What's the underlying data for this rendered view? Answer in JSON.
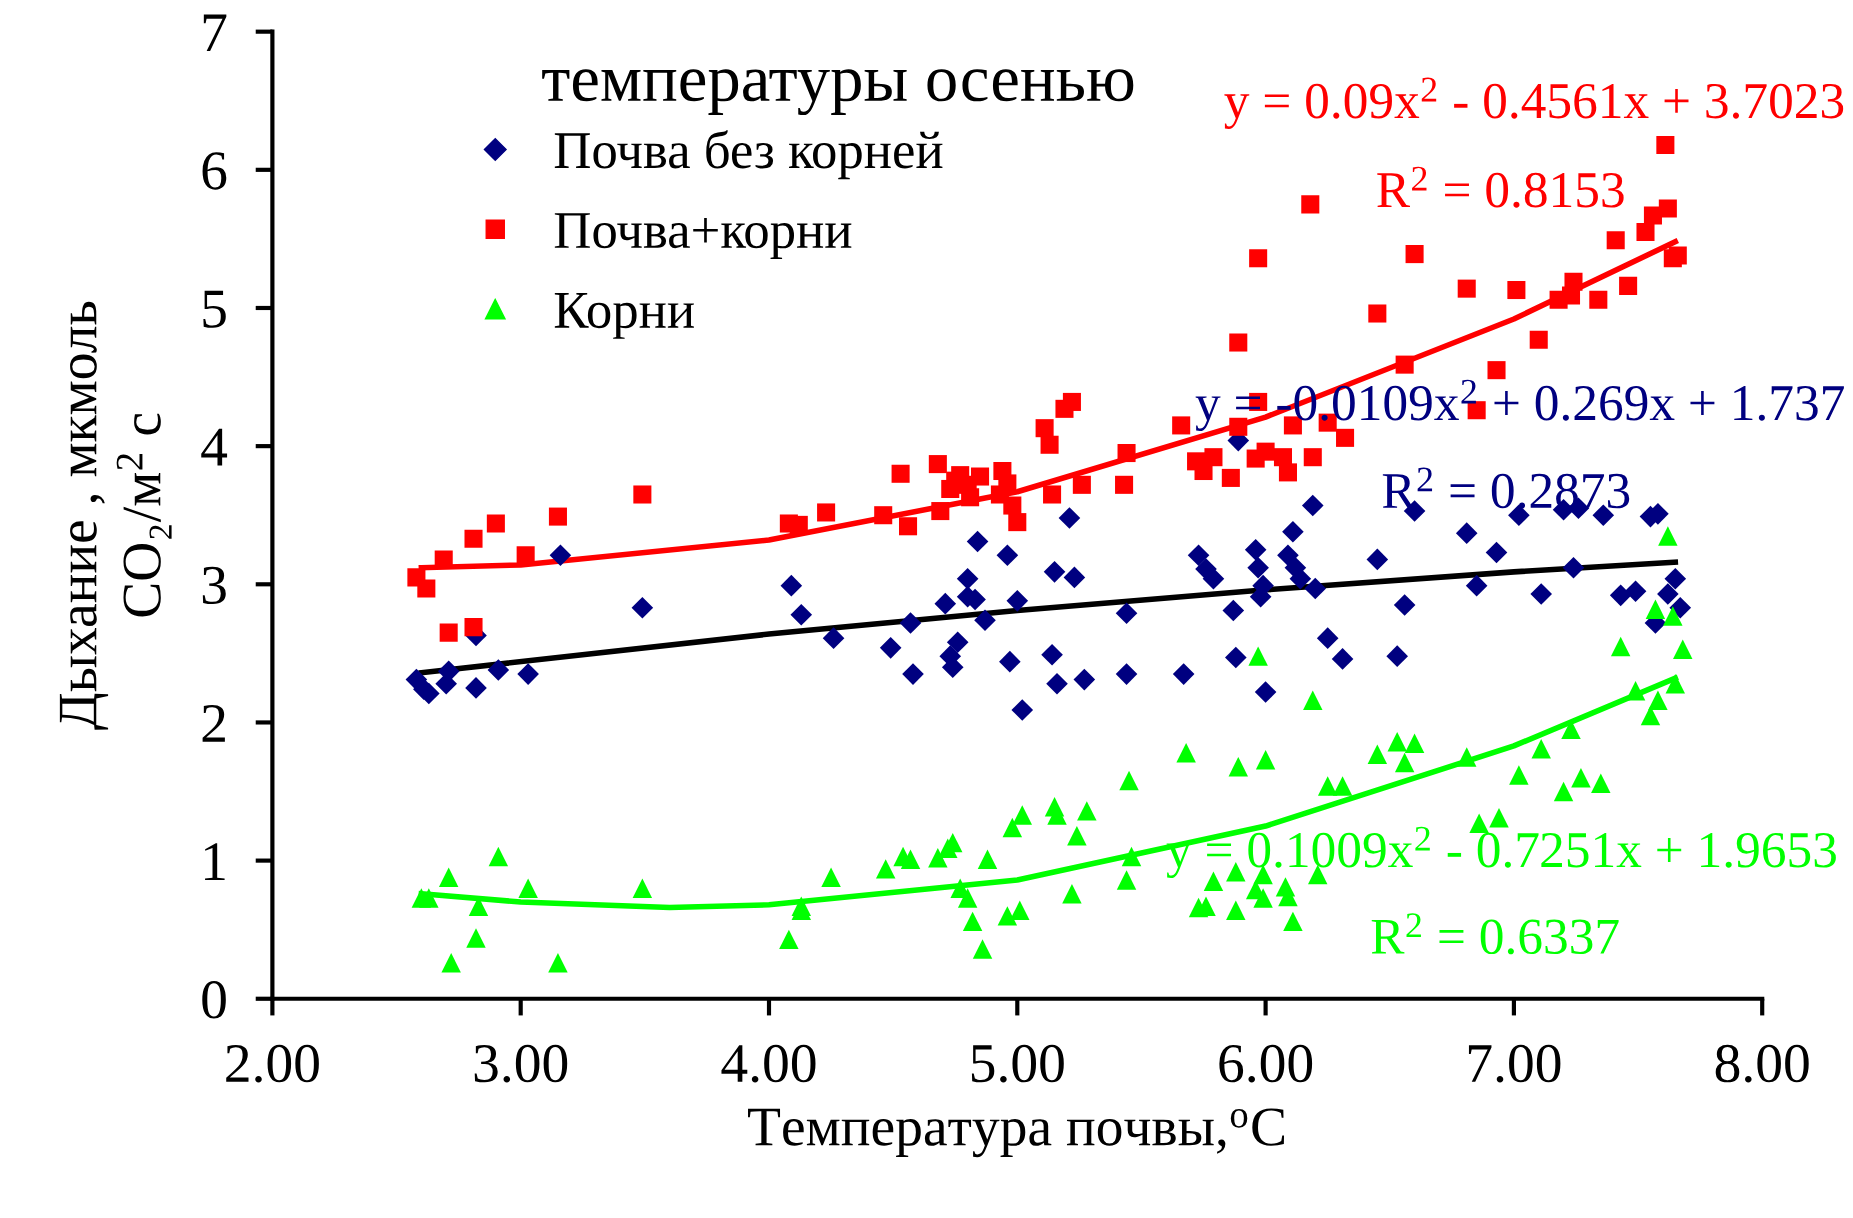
{
  "chart_data": {
    "type": "scatter",
    "title": "температуры осенью",
    "xlabel": "Температура почвы,$^{o}$C",
    "ylabel": "Дыхание , мкмоль\nCO₂/м$^{2}$ с",
    "xlim": [
      2,
      8
    ],
    "xticks": [
      {
        "value": 2,
        "label": "2.00"
      },
      {
        "value": 3,
        "label": "3.00"
      },
      {
        "value": 4,
        "label": "4.00"
      },
      {
        "value": 5,
        "label": "5.00"
      },
      {
        "value": 6,
        "label": "6.00"
      },
      {
        "value": 7,
        "label": "7.00"
      },
      {
        "value": 8,
        "label": "8.00"
      }
    ],
    "ylim": [
      0,
      7
    ],
    "yticks": [
      0,
      1,
      2,
      3,
      4,
      5,
      6,
      7
    ],
    "grid": false,
    "legend": "top left",
    "series": [
      {
        "name": "Почва без корней",
        "marker": "diamond",
        "color": "#000080",
        "x": [
          2.58,
          2.61,
          2.63,
          2.7,
          2.71,
          2.82,
          2.82,
          2.91,
          3.03,
          3.16,
          3.49,
          4.09,
          4.13,
          4.26,
          4.49,
          4.58,
          4.57,
          4.71,
          4.73,
          4.74,
          4.76,
          4.8,
          4.8,
          4.83,
          4.84,
          4.87,
          4.96,
          4.97,
          5.0,
          5.02,
          5.14,
          5.15,
          5.16,
          5.21,
          5.23,
          5.27,
          5.44,
          5.44,
          5.67,
          5.73,
          5.76,
          5.79,
          5.87,
          5.88,
          5.89,
          5.96,
          5.97,
          5.98,
          5.99,
          6.0,
          6.09,
          6.11,
          6.12,
          6.14,
          6.19,
          6.2,
          6.25,
          6.31,
          6.45,
          6.53,
          6.56,
          6.6,
          6.81,
          6.85,
          6.93,
          7.02,
          7.11,
          7.2,
          7.26,
          7.24,
          7.36,
          7.43,
          7.49,
          7.55,
          7.58,
          7.57,
          7.62,
          7.65,
          7.67
        ],
        "values": [
          2.31,
          2.24,
          2.21,
          2.28,
          2.37,
          2.25,
          2.63,
          2.38,
          2.35,
          3.21,
          2.83,
          2.99,
          2.78,
          2.61,
          2.54,
          2.35,
          2.72,
          2.86,
          2.48,
          2.4,
          2.58,
          2.91,
          3.04,
          2.89,
          3.31,
          2.74,
          3.21,
          2.44,
          2.88,
          2.09,
          2.49,
          3.09,
          2.28,
          3.48,
          3.05,
          2.31,
          2.35,
          2.79,
          2.35,
          3.21,
          3.11,
          3.04,
          2.81,
          2.47,
          4.04,
          3.25,
          3.12,
          2.91,
          2.99,
          2.22,
          3.21,
          3.38,
          3.12,
          3.04,
          3.57,
          2.97,
          2.61,
          2.46,
          3.18,
          2.48,
          2.85,
          3.53,
          3.37,
          2.99,
          3.23,
          3.5,
          2.93,
          3.54,
          3.55,
          3.12,
          3.5,
          2.92,
          2.95,
          3.49,
          3.51,
          2.72,
          2.93,
          3.04,
          2.83
        ]
      },
      {
        "name": "Почва+корни",
        "marker": "square",
        "color": "#ff0000",
        "x": [
          2.58,
          2.62,
          2.69,
          2.71,
          2.81,
          2.81,
          2.9,
          3.02,
          3.15,
          3.49,
          4.08,
          4.12,
          4.23,
          4.46,
          4.53,
          4.56,
          4.68,
          4.69,
          4.73,
          4.75,
          4.77,
          4.8,
          4.81,
          4.85,
          4.93,
          4.94,
          4.96,
          4.98,
          5.0,
          5.11,
          5.13,
          5.14,
          5.19,
          5.22,
          5.26,
          5.43,
          5.44,
          5.66,
          5.72,
          5.75,
          5.79,
          5.86,
          5.89,
          5.89,
          5.96,
          5.97,
          5.97,
          6.0,
          6.07,
          6.09,
          6.11,
          6.18,
          6.19,
          6.25,
          6.32,
          6.45,
          6.56,
          6.6,
          6.81,
          6.85,
          6.93,
          7.01,
          7.1,
          7.18,
          7.23,
          7.24,
          7.34,
          7.41,
          7.46,
          7.53,
          7.56,
          7.61,
          7.62,
          7.64,
          7.66
        ],
        "values": [
          3.05,
          2.97,
          3.18,
          2.65,
          3.33,
          2.69,
          3.44,
          3.21,
          3.49,
          3.65,
          3.44,
          3.43,
          3.52,
          3.5,
          3.8,
          3.42,
          3.87,
          3.53,
          3.69,
          3.75,
          3.79,
          3.72,
          3.63,
          3.78,
          3.65,
          3.82,
          3.73,
          3.57,
          3.45,
          4.13,
          4.01,
          3.65,
          4.27,
          4.32,
          3.72,
          3.72,
          3.95,
          4.15,
          3.89,
          3.82,
          3.92,
          3.77,
          4.75,
          4.14,
          3.91,
          5.36,
          4.32,
          3.96,
          3.92,
          3.81,
          4.15,
          5.75,
          3.92,
          4.17,
          4.06,
          4.96,
          4.59,
          5.39,
          5.14,
          4.26,
          4.55,
          5.13,
          4.77,
          5.06,
          5.09,
          5.19,
          5.06,
          5.49,
          5.16,
          5.55,
          5.67,
          6.18,
          5.72,
          5.36,
          5.38
        ]
      },
      {
        "name": "Корни",
        "marker": "triangle",
        "color": "#00ff00",
        "x": [
          2.6,
          2.63,
          2.71,
          2.72,
          2.82,
          2.83,
          2.91,
          3.03,
          3.15,
          3.49,
          4.08,
          4.13,
          4.13,
          4.25,
          4.47,
          4.54,
          4.57,
          4.68,
          4.72,
          4.74,
          4.77,
          4.8,
          4.82,
          4.86,
          4.88,
          4.96,
          4.98,
          5.01,
          5.02,
          5.15,
          5.16,
          5.22,
          5.24,
          5.28,
          5.44,
          5.45,
          5.46,
          5.68,
          5.73,
          5.76,
          5.79,
          5.89,
          5.88,
          5.88,
          5.96,
          5.97,
          5.99,
          6.0,
          5.99,
          6.08,
          6.09,
          6.11,
          6.19,
          6.21,
          6.25,
          6.31,
          6.45,
          6.53,
          6.56,
          6.6,
          6.81,
          6.86,
          6.94,
          7.02,
          7.11,
          7.2,
          7.23,
          7.27,
          7.35,
          7.43,
          7.49,
          7.55,
          7.57,
          7.58,
          7.62,
          7.64,
          7.65,
          7.68
        ],
        "values": [
          0.73,
          0.73,
          0.88,
          0.26,
          0.44,
          0.67,
          1.03,
          0.8,
          0.26,
          0.8,
          0.43,
          0.67,
          0.64,
          0.88,
          0.94,
          1.03,
          1.01,
          1.02,
          1.09,
          1.13,
          0.8,
          0.73,
          0.56,
          0.36,
          1.01,
          0.6,
          1.24,
          0.64,
          1.33,
          1.39,
          1.33,
          0.76,
          1.18,
          1.36,
          0.86,
          1.58,
          1.03,
          1.78,
          0.66,
          0.67,
          0.85,
          1.68,
          0.64,
          0.92,
          0.79,
          2.48,
          0.9,
          1.73,
          0.73,
          0.81,
          0.74,
          0.56,
          2.16,
          0.9,
          1.54,
          1.54,
          1.77,
          1.86,
          1.71,
          1.85,
          1.75,
          1.27,
          1.31,
          1.62,
          1.81,
          1.5,
          1.95,
          1.6,
          1.56,
          2.55,
          2.23,
          2.05,
          2.82,
          2.16,
          3.35,
          2.77,
          2.28,
          2.53
        ]
      },
      {
        "type": "line",
        "line_style": "solid",
        "color": "#ff0000",
        "x": [
          2.6,
          3,
          4,
          5,
          6,
          7,
          7.65
        ],
        "values": [
          3.12,
          3.14,
          3.32,
          3.67,
          4.21,
          4.92,
          5.48
        ]
      },
      {
        "type": "line",
        "line_style": "solid",
        "color": "#000000",
        "x": [
          2.6,
          4,
          5,
          6,
          7,
          7.65
        ],
        "values": [
          2.36,
          2.64,
          2.81,
          2.96,
          3.09,
          3.16
        ]
      },
      {
        "type": "line",
        "line_style": "solid",
        "color": "#00ff00",
        "x": [
          2.6,
          3,
          3.6,
          4,
          5,
          6,
          7,
          7.65
        ],
        "values": [
          0.76,
          0.7,
          0.66,
          0.68,
          0.86,
          1.25,
          1.83,
          2.32
        ]
      }
    ],
    "annotations": [
      "y = 0.09x$^{2}$ - 0.4561x + 3.7023",
      "R$^{2}$ = 0.8153",
      "y = -0.0109x$^{2}$ + 0.269x + 1.737",
      "R$^{2}$ = 0.2873",
      "y = 0.1009x$^{2}$ - 0.7251x + 1.9653",
      "R$^{2}$ = 0.6337"
    ]
  }
}
